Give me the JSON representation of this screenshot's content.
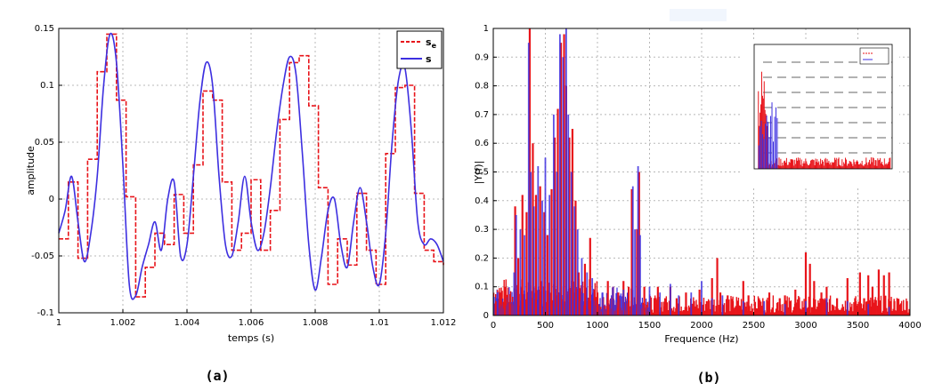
{
  "chart_data": [
    {
      "type": "line",
      "panel_label": "(a)",
      "xlabel": "temps (s)",
      "ylabel": "amplitude",
      "xlim": [
        1,
        1.012
      ],
      "ylim": [
        -0.1,
        0.15
      ],
      "xticks": [
        "1",
        "1.002",
        "1.004",
        "1.006",
        "1.008",
        "1.01",
        "1.012"
      ],
      "yticks": [
        "-0.1",
        "-0.05",
        "0",
        "0.05",
        "0.1",
        "0.15"
      ],
      "grid": true,
      "legend_position": "top-right",
      "colors": {
        "se": "#e8141a",
        "s": "#3d2fe0"
      },
      "series": [
        {
          "name": "s",
          "name_sub": "e",
          "style": "dashed-step",
          "x": [
            1.0,
            1.0003,
            1.0006,
            1.0009,
            1.0012,
            1.0015,
            1.0018,
            1.0021,
            1.0024,
            1.0027,
            1.003,
            1.0033,
            1.0036,
            1.0039,
            1.0042,
            1.0045,
            1.0048,
            1.0051,
            1.0054,
            1.0057,
            1.006,
            1.0063,
            1.0066,
            1.0069,
            1.0072,
            1.0075,
            1.0078,
            1.0081,
            1.0084,
            1.0087,
            1.009,
            1.0093,
            1.0096,
            1.0099,
            1.0102,
            1.0105,
            1.0108,
            1.0111,
            1.0114,
            1.0117,
            1.012
          ],
          "values": [
            -0.035,
            0.015,
            -0.052,
            0.035,
            0.112,
            0.145,
            0.087,
            0.002,
            -0.086,
            -0.06,
            -0.03,
            -0.04,
            0.004,
            -0.03,
            0.03,
            0.095,
            0.087,
            0.015,
            -0.045,
            -0.03,
            0.017,
            -0.045,
            -0.01,
            0.07,
            0.12,
            0.126,
            0.082,
            0.01,
            -0.075,
            -0.035,
            -0.058,
            0.005,
            -0.045,
            -0.075,
            0.04,
            0.098,
            0.1,
            0.005,
            -0.045,
            -0.055,
            -0.058
          ]
        },
        {
          "name": "s",
          "style": "solid",
          "x": [
            1.0,
            1.0002,
            1.0004,
            1.0006,
            1.0008,
            1.001,
            1.0012,
            1.0014,
            1.0016,
            1.0018,
            1.002,
            1.0022,
            1.0024,
            1.0026,
            1.0028,
            1.003,
            1.0032,
            1.0034,
            1.0036,
            1.0038,
            1.004,
            1.0042,
            1.0044,
            1.0046,
            1.0048,
            1.005,
            1.0052,
            1.0054,
            1.0056,
            1.0058,
            1.006,
            1.0062,
            1.0064,
            1.0066,
            1.0068,
            1.007,
            1.0072,
            1.0074,
            1.0076,
            1.0078,
            1.008,
            1.0082,
            1.0084,
            1.0086,
            1.0088,
            1.009,
            1.0092,
            1.0094,
            1.0096,
            1.0098,
            1.01,
            1.0102,
            1.0104,
            1.0106,
            1.0108,
            1.011,
            1.0112,
            1.0114,
            1.0116,
            1.0118,
            1.012
          ],
          "values": [
            -0.03,
            -0.01,
            0.02,
            -0.02,
            -0.055,
            -0.03,
            0.02,
            0.1,
            0.145,
            0.12,
            0.03,
            -0.075,
            -0.085,
            -0.06,
            -0.04,
            -0.02,
            -0.045,
            0.0,
            0.015,
            -0.05,
            -0.04,
            0.02,
            0.085,
            0.12,
            0.1,
            0.02,
            -0.04,
            -0.05,
            -0.02,
            0.02,
            -0.02,
            -0.045,
            -0.03,
            0.01,
            0.06,
            0.1,
            0.125,
            0.11,
            0.04,
            -0.04,
            -0.08,
            -0.05,
            -0.01,
            0.0,
            -0.04,
            -0.06,
            -0.02,
            0.01,
            -0.02,
            -0.06,
            -0.075,
            -0.03,
            0.05,
            0.105,
            0.115,
            0.06,
            -0.02,
            -0.04,
            -0.035,
            -0.04,
            -0.055
          ]
        }
      ]
    },
    {
      "type": "bar",
      "panel_label": "(b)",
      "xlabel": "Frequence (Hz)",
      "ylabel": "|Y(f)|",
      "xlim": [
        0,
        4000
      ],
      "ylim": [
        0,
        1
      ],
      "xticks": [
        "0",
        "500",
        "1000",
        "1500",
        "2000",
        "2500",
        "3000",
        "3500",
        "4000"
      ],
      "yticks": [
        "0",
        "0.1",
        "0.2",
        "0.3",
        "0.4",
        "0.5",
        "0.6",
        "0.7",
        "0.8",
        "0.9",
        "1"
      ],
      "grid": true,
      "inset": "top-right",
      "colors": {
        "se": "#e8141a",
        "s": "#3d2fe0"
      },
      "series": [
        {
          "name": "s",
          "name_sub": "e",
          "x": [
            30,
            110,
            160,
            210,
            240,
            280,
            320,
            350,
            380,
            410,
            450,
            490,
            520,
            560,
            590,
            620,
            650,
            680,
            700,
            730,
            760,
            790,
            820,
            880,
            930,
            1000,
            1050,
            1100,
            1150,
            1200,
            1250,
            1300,
            1330,
            1380,
            1400,
            1450,
            1500,
            1580,
            1650,
            1700,
            1760,
            1850,
            1900,
            1980,
            2050,
            2100,
            2150,
            2180,
            2250,
            2300,
            2400,
            2450,
            2550,
            2650,
            2750,
            2800,
            2900,
            3000,
            3040,
            3080,
            3150,
            3200,
            3300,
            3400,
            3480,
            3520,
            3560,
            3600,
            3640,
            3700,
            3750,
            3800,
            3850
          ],
          "values": [
            0.05,
            0.1,
            0.04,
            0.38,
            0.2,
            0.42,
            0.36,
            1.0,
            0.6,
            0.42,
            0.45,
            0.36,
            0.28,
            0.44,
            0.62,
            0.72,
            0.95,
            0.98,
            0.8,
            0.62,
            0.65,
            0.4,
            0.15,
            0.18,
            0.27,
            0.08,
            0.06,
            0.12,
            0.1,
            0.08,
            0.12,
            0.1,
            0.44,
            0.3,
            0.5,
            0.1,
            0.05,
            0.1,
            0.06,
            0.1,
            0.06,
            0.08,
            0.04,
            0.09,
            0.05,
            0.13,
            0.2,
            0.08,
            0.07,
            0.05,
            0.12,
            0.07,
            0.06,
            0.08,
            0.06,
            0.07,
            0.09,
            0.22,
            0.18,
            0.12,
            0.08,
            0.1,
            0.06,
            0.13,
            0.05,
            0.15,
            0.06,
            0.14,
            0.1,
            0.16,
            0.14,
            0.15,
            0.05
          ]
        },
        {
          "name": "s",
          "x": [
            40,
            200,
            220,
            260,
            300,
            340,
            360,
            390,
            430,
            470,
            500,
            540,
            580,
            610,
            640,
            670,
            700,
            720,
            750,
            780,
            810,
            850,
            900,
            950,
            1050,
            1150,
            1250,
            1340,
            1360,
            1390,
            1410,
            1500,
            1600,
            1700,
            1780,
            1900,
            2000,
            2100,
            2200,
            2400,
            2600,
            2800,
            3000,
            3200,
            3400,
            3600,
            3800
          ],
          "values": [
            0.08,
            0.15,
            0.35,
            0.3,
            0.28,
            0.95,
            0.5,
            0.38,
            0.52,
            0.4,
            0.55,
            0.42,
            0.7,
            0.5,
            0.98,
            0.9,
            1.0,
            0.7,
            0.5,
            0.38,
            0.3,
            0.2,
            0.15,
            0.13,
            0.08,
            0.1,
            0.09,
            0.45,
            0.3,
            0.52,
            0.28,
            0.1,
            0.08,
            0.11,
            0.07,
            0.08,
            0.12,
            0.06,
            0.07,
            0.05,
            0.05,
            0.04,
            0.05,
            0.06,
            0.05,
            0.04,
            0.03
          ]
        }
      ]
    }
  ]
}
